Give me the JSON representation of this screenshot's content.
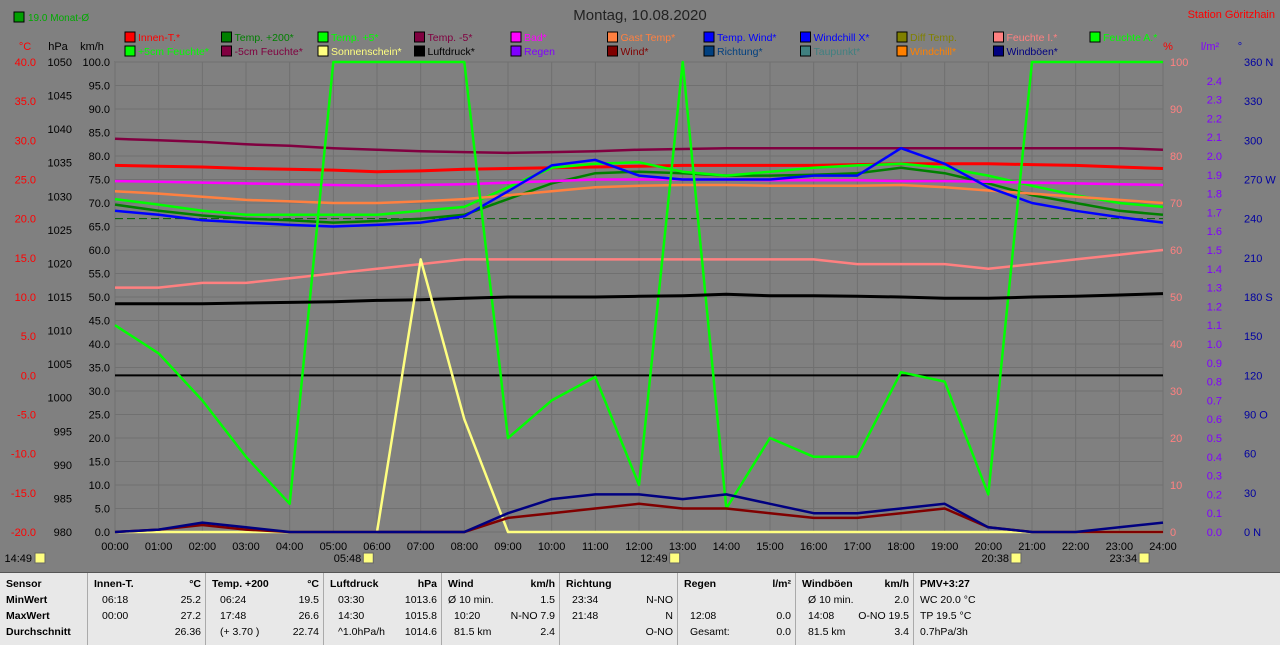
{
  "header": {
    "title": "Montag, 10.08.2020",
    "station": "Station Göritzhain",
    "month_avg": "19.0 Monat-Ø"
  },
  "axes": {
    "temp_unit": "°C",
    "pressure_unit": "hPa",
    "speed_unit": "km/h",
    "percent_unit": "%",
    "rain_unit": "l/m²",
    "direction_unit": "°",
    "temp_ticks": [
      "40.0",
      "35.0",
      "30.0",
      "25.0",
      "20.0",
      "15.0",
      "10.0",
      "5.0",
      "0.0",
      "-5.0",
      "-10.0",
      "-15.0",
      "-20.0"
    ],
    "pressure_ticks": [
      "1050",
      "1045",
      "1040",
      "1035",
      "1030",
      "1025",
      "1020",
      "1015",
      "1010",
      "1005",
      "1000",
      "995",
      "990",
      "985",
      "980"
    ],
    "speed_ticks": [
      "100.0",
      "95.0",
      "90.0",
      "85.0",
      "80.0",
      "75.0",
      "70.0",
      "65.0",
      "60.0",
      "55.0",
      "50.0",
      "45.0",
      "40.0",
      "35.0",
      "30.0",
      "25.0",
      "20.0",
      "15.0",
      "10.0",
      "5.0",
      "0.0"
    ],
    "percent_ticks": [
      "100",
      "90",
      "80",
      "70",
      "60",
      "50",
      "40",
      "30",
      "20",
      "10",
      "0"
    ],
    "rain_ticks": [
      "2.4",
      "2.3",
      "2.2",
      "2.1",
      "2.0",
      "1.9",
      "1.8",
      "1.7",
      "1.6",
      "1.5",
      "1.4",
      "1.3",
      "1.2",
      "1.1",
      "1.0",
      "0.9",
      "0.8",
      "0.7",
      "0.6",
      "0.5",
      "0.4",
      "0.3",
      "0.2",
      "0.1",
      "0.0"
    ],
    "direction_ticks": [
      "360 N",
      "330",
      "300",
      "270 W",
      "240",
      "210",
      "180 S",
      "150",
      "120",
      "90 O",
      "60",
      "30",
      "0 N"
    ],
    "time_ticks": [
      "00:00",
      "01:00",
      "02:00",
      "03:00",
      "04:00",
      "05:00",
      "06:00",
      "07:00",
      "08:00",
      "09:00",
      "10:00",
      "11:00",
      "12:00",
      "13:00",
      "14:00",
      "15:00",
      "16:00",
      "17:00",
      "18:00",
      "19:00",
      "20:00",
      "21:00",
      "22:00",
      "23:00",
      "24:00"
    ]
  },
  "markers": {
    "now": "14:49",
    "sunrise": "05:48",
    "noon": "12:49",
    "sunset": "20:38",
    "moon": "23:34"
  },
  "legend": [
    {
      "label": "Innen-T.*",
      "color": "#ff0000"
    },
    {
      "label": "Temp. +200*",
      "color": "#008000"
    },
    {
      "label": "Temp. +5*",
      "color": "#00ff00"
    },
    {
      "label": "Temp. -5*",
      "color": "#800040"
    },
    {
      "label": "Bad*",
      "color": "#ff00ff"
    },
    {
      "label": "Gast Temp*",
      "color": "#ff8040"
    },
    {
      "label": "Temp. Wind*",
      "color": "#0000ff"
    },
    {
      "label": "Windchill X*",
      "color": "#0000ff"
    },
    {
      "label": "Diff Temp.",
      "color": "#808000"
    },
    {
      "label": "Feuchte I.*",
      "color": "#ff8080"
    },
    {
      "label": "Feuchte A.*",
      "color": "#00ff00"
    },
    {
      "label": "+5cm Feuchte*",
      "color": "#00ff00"
    },
    {
      "label": "-5cm Feuchte*",
      "color": "#800040"
    },
    {
      "label": "Sonnenschein*",
      "color": "#ffff80"
    },
    {
      "label": "Luftdruck*",
      "color": "#000000"
    },
    {
      "label": "Regen",
      "color": "#8000ff"
    },
    {
      "label": "Wind*",
      "color": "#800000"
    },
    {
      "label": "Richtung*",
      "color": "#004080"
    },
    {
      "label": "Taupunkt*",
      "color": "#408080"
    },
    {
      "label": "Windchill*",
      "color": "#ff8000"
    },
    {
      "label": "Windböen*",
      "color": "#000080"
    }
  ],
  "chart_data": {
    "type": "line",
    "title": "Montag, 10.08.2020",
    "x": [
      "00:00",
      "01:00",
      "02:00",
      "03:00",
      "04:00",
      "05:00",
      "06:00",
      "07:00",
      "08:00",
      "09:00",
      "10:00",
      "11:00",
      "12:00",
      "13:00",
      "14:00",
      "15:00",
      "16:00",
      "17:00",
      "18:00",
      "19:00",
      "20:00",
      "21:00",
      "22:00",
      "23:00",
      "24:00"
    ],
    "ylim_temp": [
      -20,
      40
    ],
    "ylim_percent": [
      0,
      100
    ],
    "ylim_pressure": [
      980,
      1050
    ],
    "series": [
      {
        "name": "Innen-T.*",
        "axis": "temp",
        "color": "#ff0000",
        "values": [
          26.8,
          26.7,
          26.6,
          26.4,
          26.3,
          26.2,
          26.0,
          26.1,
          26.3,
          26.4,
          26.5,
          26.6,
          26.7,
          26.8,
          26.8,
          26.8,
          26.8,
          26.9,
          27.0,
          27.0,
          27.0,
          26.9,
          26.8,
          26.6,
          26.4
        ]
      },
      {
        "name": "Temp. +200*",
        "axis": "temp",
        "color": "#008000",
        "values": [
          21.8,
          21.0,
          20.4,
          20.0,
          19.8,
          19.5,
          19.7,
          20.0,
          20.5,
          22.5,
          24.5,
          25.8,
          26.0,
          25.8,
          25.5,
          25.5,
          25.6,
          25.8,
          26.5,
          25.8,
          24.5,
          23.0,
          22.0,
          21.0,
          20.5
        ]
      },
      {
        "name": "Temp. +5*",
        "axis": "temp",
        "color": "#00ff00",
        "values": [
          22.5,
          21.8,
          21.0,
          20.5,
          20.5,
          20.5,
          20.5,
          21.0,
          21.5,
          24.0,
          26.5,
          27.0,
          27.2,
          26.0,
          25.5,
          26.0,
          26.5,
          26.8,
          27.0,
          26.5,
          25.5,
          24.2,
          23.0,
          22.0,
          21.5
        ]
      },
      {
        "name": "Temp. -5*",
        "axis": "temp",
        "color": "#800040",
        "values": [
          30.2,
          30.0,
          29.8,
          29.5,
          29.3,
          29.0,
          28.8,
          28.6,
          28.5,
          28.4,
          28.5,
          28.6,
          28.8,
          28.9,
          29.0,
          29.0,
          29.0,
          29.0,
          29.0,
          29.0,
          29.0,
          29.0,
          29.0,
          29.0,
          28.8
        ]
      },
      {
        "name": "Bad*",
        "axis": "temp",
        "color": "#ff00ff",
        "values": [
          24.8,
          24.7,
          24.6,
          24.5,
          24.4,
          24.3,
          24.2,
          24.3,
          24.4,
          24.6,
          24.8,
          25.0,
          25.0,
          25.0,
          25.0,
          24.9,
          24.9,
          24.9,
          24.8,
          24.8,
          24.7,
          24.6,
          24.5,
          24.4,
          24.3
        ]
      },
      {
        "name": "Gast Temp*",
        "axis": "temp",
        "color": "#ff8040",
        "values": [
          23.5,
          23.2,
          22.8,
          22.4,
          22.2,
          22.0,
          22.0,
          22.2,
          22.5,
          23.0,
          23.5,
          24.0,
          24.2,
          24.3,
          24.3,
          24.2,
          24.2,
          24.2,
          24.3,
          24.0,
          23.6,
          23.2,
          22.8,
          22.4,
          22.0
        ]
      },
      {
        "name": "Temp. Wind*",
        "axis": "temp",
        "color": "#0000ff",
        "values": [
          21.0,
          20.5,
          19.8,
          19.5,
          19.2,
          19.0,
          19.2,
          19.5,
          20.3,
          23.5,
          26.8,
          27.5,
          25.5,
          25.0,
          25.0,
          25.0,
          25.5,
          25.5,
          29.0,
          27.0,
          24.0,
          22.0,
          21.0,
          20.2,
          19.5
        ]
      },
      {
        "name": "Feuchte I.*",
        "axis": "percent",
        "color": "#ff8080",
        "values": [
          52,
          52,
          53,
          53,
          54,
          55,
          56,
          57,
          58,
          58,
          58,
          58,
          58,
          58,
          58,
          58,
          58,
          57,
          57,
          57,
          56,
          57,
          58,
          59,
          60
        ]
      },
      {
        "name": "Feuchte A.*",
        "axis": "percent",
        "color": "#00ff00",
        "values": [
          44,
          38,
          28,
          16,
          6,
          100,
          100,
          100,
          100,
          20,
          28,
          33,
          10,
          100,
          5,
          20,
          16,
          16,
          34,
          32,
          8,
          100,
          100,
          100,
          100
        ]
      },
      {
        "name": "Luftdruck*",
        "axis": "pressure",
        "color": "#000000",
        "values": [
          1014.0,
          1014.0,
          1014.0,
          1014.1,
          1014.2,
          1014.3,
          1014.5,
          1014.6,
          1014.8,
          1015.0,
          1015.0,
          1015.0,
          1015.1,
          1015.2,
          1015.4,
          1015.2,
          1015.2,
          1015.1,
          1015.0,
          1014.8,
          1014.8,
          1015.0,
          1015.1,
          1015.3,
          1015.5
        ]
      },
      {
        "name": "Sonnenschein*",
        "axis": "speed",
        "color": "#ffff80",
        "values": [
          0,
          0,
          0,
          0,
          0,
          0,
          0,
          58,
          24,
          0,
          0,
          0,
          0,
          0,
          0,
          0,
          0,
          0,
          0,
          0,
          0,
          0,
          0,
          0,
          0
        ]
      },
      {
        "name": "Wind*",
        "axis": "speed",
        "color": "#800000",
        "values": [
          0,
          0.5,
          1.5,
          0.5,
          0,
          0,
          0,
          0,
          0,
          3,
          4,
          5,
          6,
          5,
          5,
          4,
          3,
          3,
          4,
          5,
          1,
          0,
          0,
          0,
          0
        ]
      },
      {
        "name": "Windböen*",
        "axis": "speed",
        "color": "#000080",
        "values": [
          0,
          0.5,
          2,
          1,
          0,
          0,
          0,
          0,
          0,
          4,
          7,
          8,
          8,
          7,
          8,
          6,
          4,
          4,
          5,
          6,
          1,
          0,
          0,
          1,
          2
        ]
      }
    ]
  },
  "stats": {
    "sensor": {
      "title": "Sensor",
      "rows": [
        "MinWert",
        "MaxWert",
        "Durchschnitt"
      ]
    },
    "innen": {
      "title": "Innen-T.",
      "unit": "°C",
      "r1a": "06:18",
      "r1b": "25.2",
      "r2a": "00:00",
      "r2b": "27.2",
      "r3a": "",
      "r3b": "26.36"
    },
    "temp200": {
      "title": "Temp. +200",
      "unit": "°C",
      "r1a": "06:24",
      "r1b": "19.5",
      "r2a": "17:48",
      "r2b": "26.6",
      "r3a": "(+ 3.70 )",
      "r3b": "22.74"
    },
    "luftdruck": {
      "title": "Luftdruck",
      "unit": "hPa",
      "r1a": "03:30",
      "r1b": "1013.6",
      "r2a": "14:30",
      "r2b": "1015.8",
      "r3a": "^1.0hPa/h",
      "r3b": "1014.6"
    },
    "wind": {
      "title": "Wind",
      "unit": "km/h",
      "r1a": "Ø 10 min.",
      "r1b": "1.5",
      "r2a": "10:20",
      "r2c": "N-NO 7.9",
      "r3a": "81.5 km",
      "r3b": "2.4"
    },
    "richtung": {
      "title": "Richtung",
      "unit": "",
      "r1a": "23:34",
      "r1b": "N-NO",
      "r2a": "21:48",
      "r2b": "N",
      "r3a": "",
      "r3b": "O-NO"
    },
    "regen": {
      "title": "Regen",
      "unit": "l/m²",
      "r1a": "",
      "r1b": "",
      "r2a": "12:08",
      "r2b": "0.0",
      "r3a": "Gesamt:",
      "r3b": "0.0"
    },
    "windboen": {
      "title": "Windböen",
      "unit": "km/h",
      "r1a": "Ø 10 min.",
      "r1b": "2.0",
      "r2a": "14:08",
      "r2c": "O-NO 19.5",
      "r3a": "81.5 km",
      "r3b": "3.4"
    },
    "pmv": {
      "title": "PMV+3:27",
      "r1": "WC 20.0 °C",
      "r2": "TP 19.5 °C",
      "r3": "0.7hPa/3h"
    }
  }
}
